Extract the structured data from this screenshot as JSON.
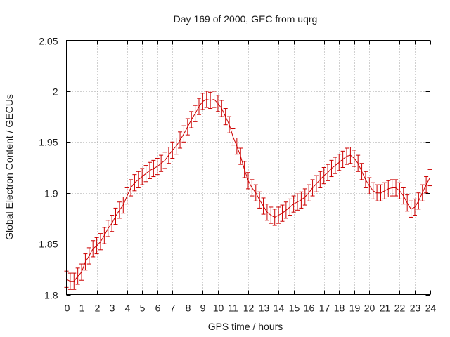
{
  "chart_data": {
    "type": "line",
    "title": "Day 169 of 2000, GEC from uqrg",
    "xlabel": "GPS time / hours",
    "ylabel": "Global Electron Content / GECUs",
    "xlim": [
      0,
      24
    ],
    "ylim": [
      1.8,
      2.05
    ],
    "x_ticks": [
      0,
      1,
      2,
      3,
      4,
      5,
      6,
      7,
      8,
      9,
      10,
      11,
      12,
      13,
      14,
      15,
      16,
      17,
      18,
      19,
      20,
      21,
      22,
      23,
      24
    ],
    "x_tick_labels": [
      "0",
      "1",
      "2",
      "3",
      "4",
      "5",
      "6",
      "7",
      "8",
      "9",
      "10",
      "11",
      "12",
      "13",
      "14",
      "15",
      "16",
      "17",
      "18",
      "19",
      "20",
      "21",
      "22",
      "23",
      "24"
    ],
    "y_ticks": [
      1.8,
      1.85,
      1.9,
      1.95,
      2.0,
      2.05
    ],
    "y_tick_labels": [
      "1.8",
      "1.85",
      "1.9",
      "1.95",
      "2",
      "2.05"
    ],
    "grid": true,
    "series_color": "#cc0000",
    "error_bar": 0.008,
    "x": [
      0,
      0.25,
      0.5,
      0.75,
      1,
      1.25,
      1.5,
      1.75,
      2,
      2.25,
      2.5,
      2.75,
      3,
      3.25,
      3.5,
      3.75,
      4,
      4.25,
      4.5,
      4.75,
      5,
      5.25,
      5.5,
      5.75,
      6,
      6.25,
      6.5,
      6.75,
      7,
      7.25,
      7.5,
      7.75,
      8,
      8.25,
      8.5,
      8.75,
      9,
      9.25,
      9.5,
      9.75,
      10,
      10.25,
      10.5,
      10.75,
      11,
      11.25,
      11.5,
      11.75,
      12,
      12.25,
      12.5,
      12.75,
      13,
      13.25,
      13.5,
      13.75,
      14,
      14.25,
      14.5,
      14.75,
      15,
      15.25,
      15.5,
      15.75,
      16,
      16.25,
      16.5,
      16.75,
      17,
      17.25,
      17.5,
      17.75,
      18,
      18.25,
      18.5,
      18.75,
      19,
      19.25,
      19.5,
      19.75,
      20,
      20.25,
      20.5,
      20.75,
      21,
      21.25,
      21.5,
      21.75,
      22,
      22.25,
      22.5,
      22.75,
      23,
      23.25,
      23.5,
      23.75,
      24
    ],
    "y": [
      1.815,
      1.813,
      1.813,
      1.818,
      1.822,
      1.832,
      1.838,
      1.845,
      1.848,
      1.852,
      1.858,
      1.865,
      1.87,
      1.877,
      1.883,
      1.888,
      1.897,
      1.905,
      1.91,
      1.913,
      1.916,
      1.919,
      1.922,
      1.924,
      1.926,
      1.929,
      1.932,
      1.937,
      1.942,
      1.946,
      1.952,
      1.958,
      1.965,
      1.972,
      1.978,
      1.985,
      1.99,
      1.992,
      1.991,
      1.992,
      1.988,
      1.983,
      1.975,
      1.967,
      1.955,
      1.946,
      1.936,
      1.923,
      1.912,
      1.905,
      1.9,
      1.893,
      1.887,
      1.881,
      1.878,
      1.876,
      1.878,
      1.88,
      1.883,
      1.886,
      1.889,
      1.891,
      1.893,
      1.896,
      1.9,
      1.905,
      1.909,
      1.913,
      1.917,
      1.92,
      1.924,
      1.927,
      1.93,
      1.933,
      1.936,
      1.937,
      1.934,
      1.929,
      1.921,
      1.913,
      1.907,
      1.902,
      1.9,
      1.9,
      1.902,
      1.904,
      1.905,
      1.905,
      1.902,
      1.897,
      1.89,
      1.884,
      1.886,
      1.892,
      1.9,
      1.908,
      1.915
    ]
  }
}
